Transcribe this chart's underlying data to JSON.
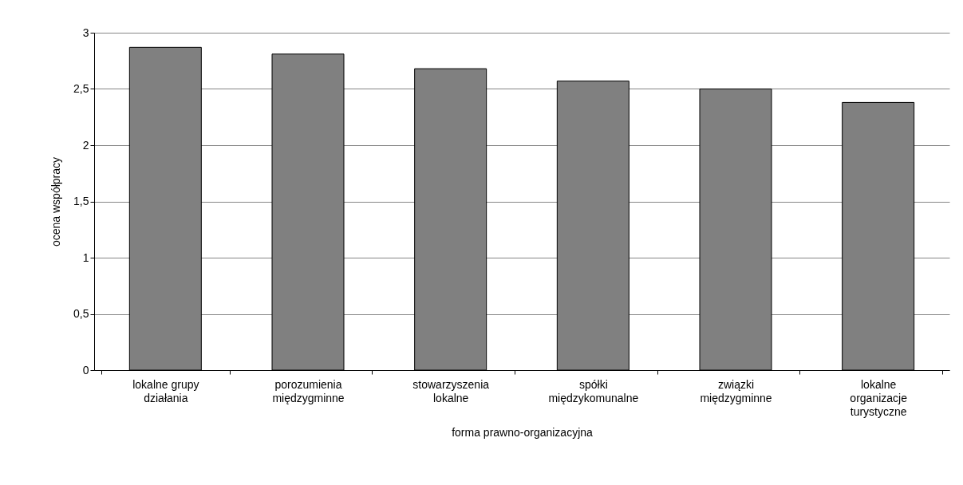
{
  "chart_data": {
    "type": "bar",
    "xlabel": "forma prawno-organizacyjna",
    "ylabel": "ocena współpracy",
    "categories": [
      "lokalne grupy\ndziałania",
      "porozumienia\nmiędzygminne",
      "stowarzyszenia\nlokalne",
      "spółki\nmiędzykomunalne",
      "związki\nmiędzygminne",
      "lokalne\norganizacje\nturystyczne"
    ],
    "values": [
      2.87,
      2.81,
      2.68,
      2.57,
      2.5,
      2.38
    ],
    "color": "#808080",
    "ylim": [
      0,
      3
    ],
    "yticks": [
      {
        "value": 0,
        "label": "0"
      },
      {
        "value": 0.5,
        "label": "0,5"
      },
      {
        "value": 1,
        "label": "1"
      },
      {
        "value": 1.5,
        "label": "1,5"
      },
      {
        "value": 2,
        "label": "2"
      },
      {
        "value": 2.5,
        "label": "2,5"
      },
      {
        "value": 3,
        "label": "3"
      }
    ],
    "grid": "y"
  }
}
